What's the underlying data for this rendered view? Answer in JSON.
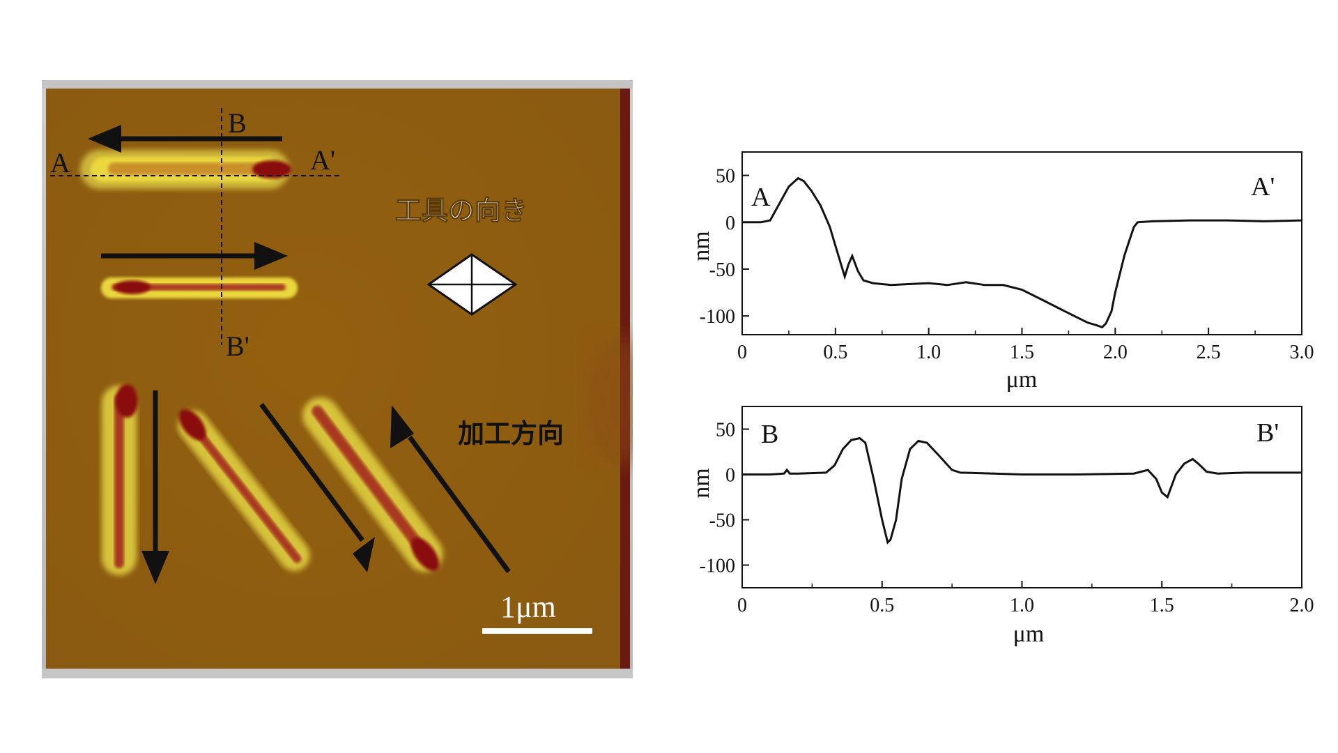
{
  "afm_image": {
    "label_A": "A",
    "label_A_prime": "A'",
    "label_B": "B",
    "label_B_prime": "B'",
    "tool_orientation_label": "工具の向き",
    "machining_direction_label": "加工方向",
    "scale_bar_label": "1μm",
    "colors": {
      "background": "#8f5d10",
      "ridge": "#e8d23a",
      "groove": "#8a0c10",
      "arrow": "#111111"
    }
  },
  "chart_data": [
    {
      "type": "line",
      "xlabel": "μm",
      "ylabel": "nm",
      "xlim": [
        0,
        3.0
      ],
      "ylim": [
        -120,
        75
      ],
      "xticks": [
        "0",
        "0.5",
        "1.0",
        "1.5",
        "2.0",
        "2.5",
        "3.0"
      ],
      "yticks": [
        "50",
        "0",
        "-50",
        "-100"
      ],
      "annotations": {
        "left": "A",
        "right": "A'"
      },
      "series": [
        {
          "x": [
            0,
            0.1,
            0.15,
            0.2,
            0.25,
            0.3,
            0.33,
            0.37,
            0.42,
            0.47,
            0.5,
            0.53,
            0.55,
            0.57,
            0.59,
            0.62,
            0.65,
            0.7,
            0.8,
            0.9,
            1.0,
            1.1,
            1.2,
            1.3,
            1.4,
            1.5,
            1.6,
            1.7,
            1.8,
            1.85,
            1.9,
            1.93,
            1.95,
            1.98,
            2.0,
            2.05,
            2.1,
            2.12,
            2.2,
            2.4,
            2.6,
            2.8,
            3.0
          ],
          "y": [
            0,
            0,
            2,
            20,
            38,
            47,
            44,
            34,
            18,
            -5,
            -25,
            -45,
            -58,
            -45,
            -36,
            -52,
            -62,
            -65,
            -67,
            -66,
            -65,
            -67,
            -64,
            -67,
            -67,
            -72,
            -82,
            -92,
            -102,
            -107,
            -110,
            -112,
            -108,
            -95,
            -75,
            -35,
            -5,
            0,
            1,
            2,
            2,
            1,
            2
          ]
        }
      ]
    },
    {
      "type": "line",
      "xlabel": "μm",
      "ylabel": "nm",
      "xlim": [
        0,
        2.0
      ],
      "ylim": [
        -125,
        75
      ],
      "xticks": [
        "0",
        "0.5",
        "1.0",
        "1.5",
        "2.0"
      ],
      "yticks": [
        "50",
        "0",
        "-50",
        "-100"
      ],
      "annotations": {
        "left": "B",
        "right": "B'"
      },
      "series": [
        {
          "x": [
            0,
            0.1,
            0.15,
            0.16,
            0.17,
            0.2,
            0.3,
            0.33,
            0.36,
            0.39,
            0.42,
            0.44,
            0.47,
            0.5,
            0.52,
            0.53,
            0.55,
            0.57,
            0.6,
            0.63,
            0.66,
            0.7,
            0.75,
            0.78,
            0.9,
            1.0,
            1.2,
            1.4,
            1.45,
            1.48,
            1.5,
            1.52,
            1.55,
            1.58,
            1.61,
            1.63,
            1.66,
            1.7,
            1.8,
            2.0
          ],
          "y": [
            0,
            0,
            1,
            5,
            1,
            1,
            2,
            10,
            28,
            38,
            40,
            35,
            -5,
            -50,
            -75,
            -72,
            -50,
            -5,
            28,
            37,
            35,
            22,
            5,
            2,
            1,
            0,
            0,
            1,
            5,
            -5,
            -20,
            -25,
            0,
            12,
            17,
            12,
            3,
            1,
            2,
            2
          ]
        }
      ]
    }
  ]
}
